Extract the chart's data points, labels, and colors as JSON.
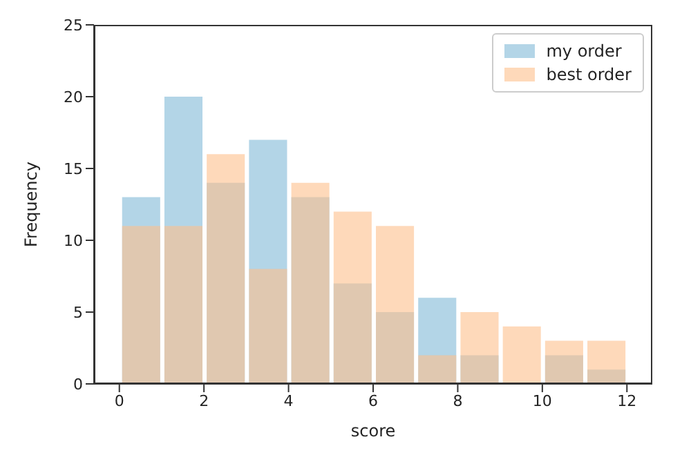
{
  "chart_data": {
    "type": "histogram",
    "xlabel": "score",
    "ylabel": "Frequency",
    "bins": [
      0,
      1,
      2,
      3,
      4,
      5,
      6,
      7,
      8,
      9,
      10,
      11,
      12
    ],
    "series": [
      {
        "name": "my order",
        "color": "#a6cee3",
        "values": [
          13,
          20,
          14,
          17,
          13,
          7,
          5,
          6,
          2,
          0,
          2,
          1
        ]
      },
      {
        "name": "best order",
        "color": "#fdbf8c",
        "values": [
          11,
          11,
          16,
          8,
          14,
          12,
          11,
          2,
          5,
          4,
          3,
          3
        ]
      }
    ],
    "xlim": [
      -0.6,
      12.6
    ],
    "xticks": [
      0,
      2,
      4,
      6,
      8,
      10,
      12
    ],
    "ylim": [
      0,
      25
    ],
    "yticks": [
      0,
      5,
      10,
      15,
      20,
      25
    ],
    "grid": false,
    "legend": "top right"
  }
}
